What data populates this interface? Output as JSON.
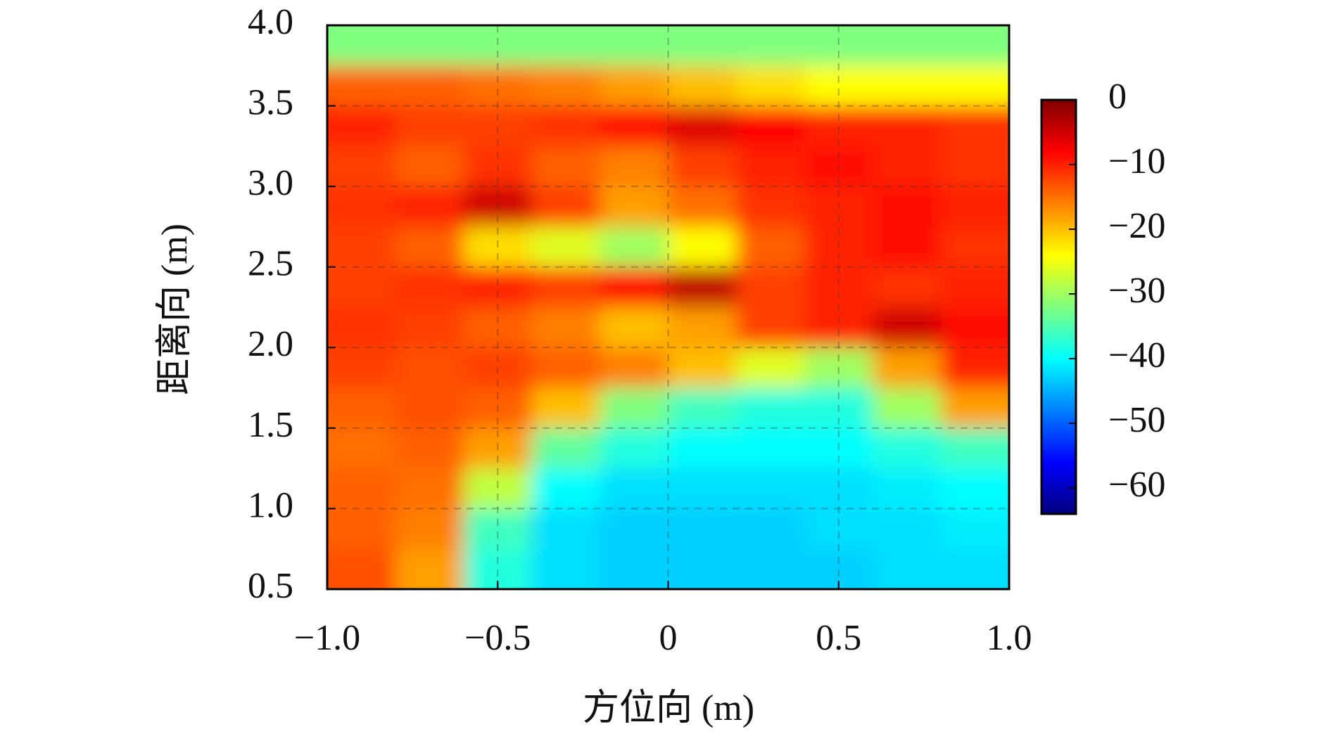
{
  "chart_data": {
    "type": "heatmap",
    "xlabel": "方位向 (m)",
    "ylabel": "距离向 (m)",
    "xlim": [
      -1,
      1
    ],
    "ylim": [
      0.5,
      4.0
    ],
    "xticks": [
      {
        "value": -1,
        "label": "−1.0"
      },
      {
        "value": -0.5,
        "label": "−0.5"
      },
      0,
      0.5,
      {
        "value": 1,
        "label": "1.0"
      }
    ],
    "yticks": [
      0.5,
      {
        "value": 1,
        "label": "1.0"
      },
      1.5,
      {
        "value": 2,
        "label": "2.0"
      },
      2.5,
      {
        "value": 3,
        "label": "3.0"
      },
      3.5,
      {
        "value": 4,
        "label": "4.0"
      }
    ],
    "grid": true,
    "colormap": "jet",
    "clim": [
      -64,
      0
    ],
    "cticks": [
      0,
      {
        "value": -10,
        "label": "−10"
      },
      {
        "value": -20,
        "label": "−20"
      },
      {
        "value": -30,
        "label": "−30"
      },
      {
        "value": -40,
        "label": "−40"
      },
      {
        "value": -50,
        "label": "−50"
      },
      {
        "value": -60,
        "label": "−60"
      }
    ],
    "x": [
      -0.9,
      -0.7,
      -0.5,
      -0.3,
      -0.1,
      0.1,
      0.3,
      0.5,
      0.7,
      0.9
    ],
    "y": [
      3.875,
      3.625,
      3.375,
      3.125,
      2.875,
      2.625,
      2.375,
      2.125,
      1.875,
      1.625,
      1.375,
      1.125,
      0.875,
      0.625
    ],
    "z": [
      [
        -32,
        -32,
        -32,
        -32,
        -32,
        -32,
        -32,
        -32,
        -32,
        -32
      ],
      [
        -14,
        -14,
        -15,
        -16,
        -18,
        -20,
        -22,
        -24,
        -24,
        -24
      ],
      [
        -10,
        -12,
        -12,
        -11,
        -9,
        -6,
        -8,
        -10,
        -10,
        -11
      ],
      [
        -12,
        -14,
        -11,
        -14,
        -16,
        -12,
        -10,
        -9,
        -10,
        -11
      ],
      [
        -11,
        -10,
        -5,
        -12,
        -18,
        -15,
        -11,
        -10,
        -9,
        -10
      ],
      [
        -12,
        -14,
        -22,
        -26,
        -30,
        -24,
        -14,
        -10,
        -9,
        -11
      ],
      [
        -12,
        -11,
        -10,
        -12,
        -8,
        -4,
        -12,
        -10,
        -11,
        -10
      ],
      [
        -11,
        -12,
        -14,
        -16,
        -20,
        -18,
        -12,
        -10,
        -5,
        -9
      ],
      [
        -12,
        -13,
        -12,
        -14,
        -16,
        -20,
        -26,
        -30,
        -18,
        -10
      ],
      [
        -14,
        -13,
        -14,
        -20,
        -32,
        -36,
        -38,
        -38,
        -30,
        -18
      ],
      [
        -15,
        -14,
        -18,
        -34,
        -38,
        -40,
        -40,
        -40,
        -38,
        -36
      ],
      [
        -14,
        -15,
        -28,
        -40,
        -42,
        -42,
        -42,
        -42,
        -41,
        -40
      ],
      [
        -14,
        -16,
        -36,
        -42,
        -43,
        -43,
        -43,
        -42,
        -42,
        -41
      ],
      [
        -13,
        -18,
        -38,
        -42,
        -43,
        -43,
        -43,
        -43,
        -42,
        -42
      ]
    ]
  }
}
